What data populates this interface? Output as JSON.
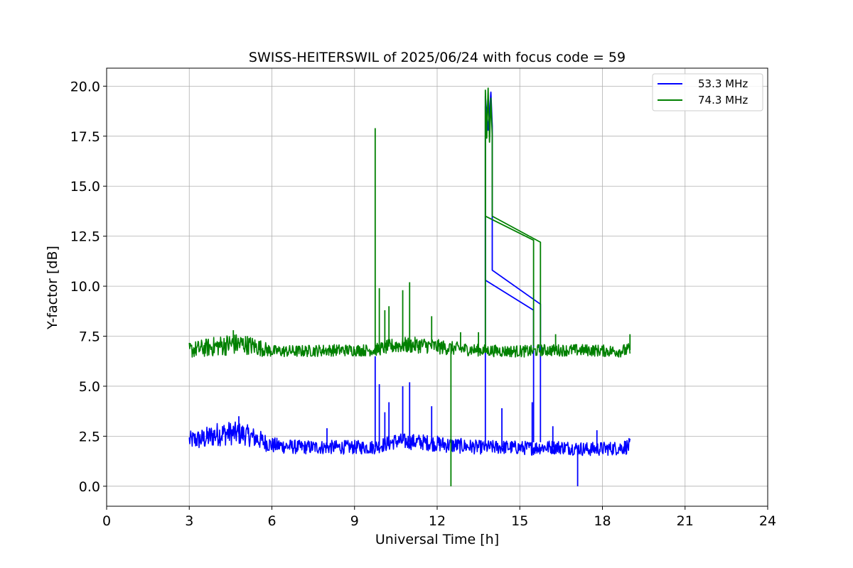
{
  "chart_data": {
    "type": "line",
    "title": "SWISS-HEITERSWIL of 2025/06/24 with focus code = 59",
    "xlabel": "Universal Time [h]",
    "ylabel": "Y-factor [dB]",
    "xlim": [
      0,
      24
    ],
    "ylim": [
      -1.0,
      20.9
    ],
    "xticks": [
      0,
      3,
      6,
      9,
      12,
      15,
      18,
      21,
      24
    ],
    "xtick_labels": [
      "0",
      "3",
      "6",
      "9",
      "12",
      "15",
      "18",
      "21",
      "24"
    ],
    "yticks": [
      0,
      2.5,
      5,
      7.5,
      10,
      12.5,
      15,
      17.5,
      20
    ],
    "ytick_labels": [
      "0.0",
      "2.5",
      "5.0",
      "7.5",
      "10.0",
      "12.5",
      "15.0",
      "17.5",
      "20.0"
    ],
    "grid": true,
    "legend_position": "top-right",
    "series": [
      {
        "name": "53.3 MHz",
        "color": "#0000ff",
        "band": [
          [
            3.0,
            2.3,
            0.45
          ],
          [
            3.5,
            2.35,
            0.55
          ],
          [
            4.0,
            2.6,
            0.6
          ],
          [
            4.5,
            2.65,
            0.6
          ],
          [
            5.0,
            2.6,
            0.55
          ],
          [
            5.5,
            2.35,
            0.5
          ],
          [
            6.0,
            2.05,
            0.4
          ],
          [
            7.0,
            1.95,
            0.35
          ],
          [
            8.0,
            1.95,
            0.35
          ],
          [
            9.0,
            1.95,
            0.35
          ],
          [
            9.7,
            1.95,
            0.35
          ],
          [
            10.5,
            2.25,
            0.4
          ],
          [
            11.5,
            2.2,
            0.4
          ],
          [
            12.5,
            2.05,
            0.4
          ],
          [
            13.5,
            1.95,
            0.35
          ],
          [
            14.5,
            1.95,
            0.35
          ],
          [
            15.5,
            1.9,
            0.35
          ],
          [
            15.7,
            1.95,
            0.35
          ],
          [
            16.5,
            1.95,
            0.35
          ],
          [
            17.5,
            1.85,
            0.35
          ],
          [
            18.5,
            1.9,
            0.35
          ],
          [
            19.0,
            2.0,
            0.4
          ]
        ],
        "spikes": [
          [
            4.8,
            3.5
          ],
          [
            8.0,
            2.9
          ],
          [
            9.75,
            6.5
          ],
          [
            9.9,
            5.1
          ],
          [
            10.1,
            3.7
          ],
          [
            10.25,
            4.2
          ],
          [
            10.75,
            5.0
          ],
          [
            11.0,
            5.2
          ],
          [
            11.8,
            4.0
          ],
          [
            14.35,
            3.9
          ],
          [
            15.45,
            4.2
          ],
          [
            16.2,
            3.0
          ],
          [
            17.1,
            0.0
          ],
          [
            17.8,
            2.8
          ]
        ],
        "segments": [
          [
            [
              13.75,
              2.0
            ],
            [
              13.75,
              19.5
            ],
            [
              13.85,
              17.8
            ],
            [
              13.95,
              19.7
            ],
            [
              14.0,
              18.0
            ],
            [
              14.0,
              10.8
            ],
            [
              15.75,
              9.1
            ],
            [
              15.75,
              2.2
            ]
          ],
          [
            [
              13.75,
              13.5
            ],
            [
              13.75,
              10.3
            ],
            [
              15.5,
              8.8
            ],
            [
              15.5,
              2.2
            ]
          ]
        ]
      },
      {
        "name": "74.3 MHz",
        "color": "#008000",
        "band": [
          [
            3.0,
            6.8,
            0.4
          ],
          [
            3.5,
            6.9,
            0.45
          ],
          [
            4.0,
            7.0,
            0.5
          ],
          [
            4.5,
            7.1,
            0.55
          ],
          [
            5.0,
            7.1,
            0.5
          ],
          [
            5.5,
            6.95,
            0.45
          ],
          [
            6.0,
            6.75,
            0.3
          ],
          [
            7.0,
            6.75,
            0.3
          ],
          [
            8.0,
            6.8,
            0.3
          ],
          [
            9.0,
            6.8,
            0.3
          ],
          [
            9.7,
            6.8,
            0.3
          ],
          [
            10.5,
            7.05,
            0.4
          ],
          [
            11.5,
            7.05,
            0.4
          ],
          [
            12.5,
            6.9,
            0.35
          ],
          [
            13.5,
            6.8,
            0.3
          ],
          [
            14.5,
            6.75,
            0.3
          ],
          [
            15.5,
            6.75,
            0.3
          ],
          [
            15.7,
            6.8,
            0.3
          ],
          [
            16.5,
            6.8,
            0.3
          ],
          [
            17.5,
            6.8,
            0.3
          ],
          [
            18.5,
            6.75,
            0.3
          ],
          [
            19.0,
            6.8,
            0.35
          ]
        ],
        "spikes": [
          [
            4.6,
            7.8
          ],
          [
            9.75,
            17.9
          ],
          [
            9.9,
            9.9
          ],
          [
            10.1,
            8.8
          ],
          [
            10.25,
            9.0
          ],
          [
            10.75,
            9.8
          ],
          [
            11.0,
            10.2
          ],
          [
            11.8,
            8.5
          ],
          [
            12.85,
            7.7
          ],
          [
            13.5,
            7.7
          ],
          [
            16.3,
            7.6
          ],
          [
            19.0,
            7.6
          ]
        ],
        "segments": [
          [
            [
              12.5,
              7.0
            ],
            [
              12.5,
              0.0
            ]
          ],
          [
            [
              13.75,
              7.0
            ],
            [
              13.75,
              19.8
            ],
            [
              13.8,
              17.4
            ],
            [
              13.85,
              19.9
            ],
            [
              13.9,
              17.2
            ],
            [
              13.95,
              19.4
            ],
            [
              14.0,
              17.5
            ],
            [
              14.0,
              13.5
            ],
            [
              15.75,
              12.2
            ],
            [
              15.75,
              7.0
            ]
          ],
          [
            [
              13.75,
              19.0
            ],
            [
              13.75,
              13.5
            ],
            [
              15.5,
              12.3
            ],
            [
              15.5,
              7.0
            ]
          ]
        ]
      }
    ]
  }
}
